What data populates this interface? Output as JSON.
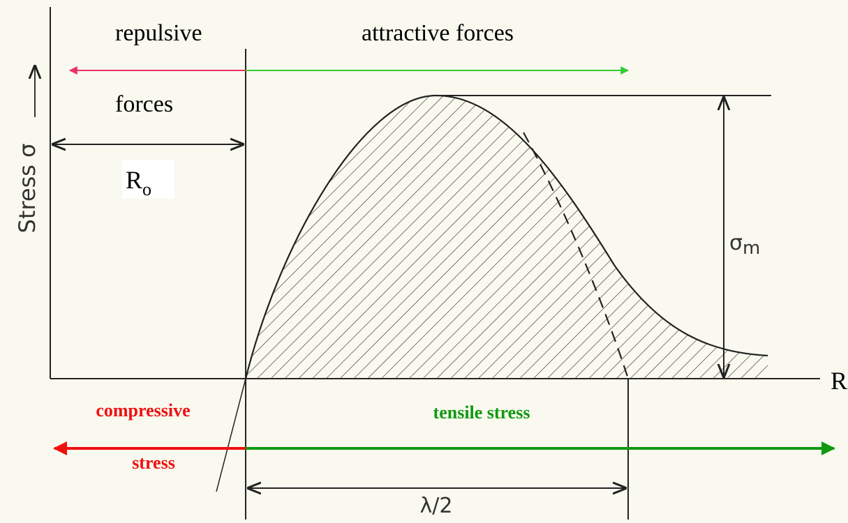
{
  "labels": {
    "repulsive": "repulsive",
    "repulsive_forces": "forces",
    "attractive": "attractive forces",
    "r0": "R",
    "r0_sub": "o",
    "y_axis": "Stress σ",
    "sigma": "σ",
    "sigma_sub": "m",
    "x_axis": "R",
    "compressive": "compressive",
    "compressive_stress": "stress",
    "tensile": "tensile stress",
    "lambda": "λ/2"
  }
}
